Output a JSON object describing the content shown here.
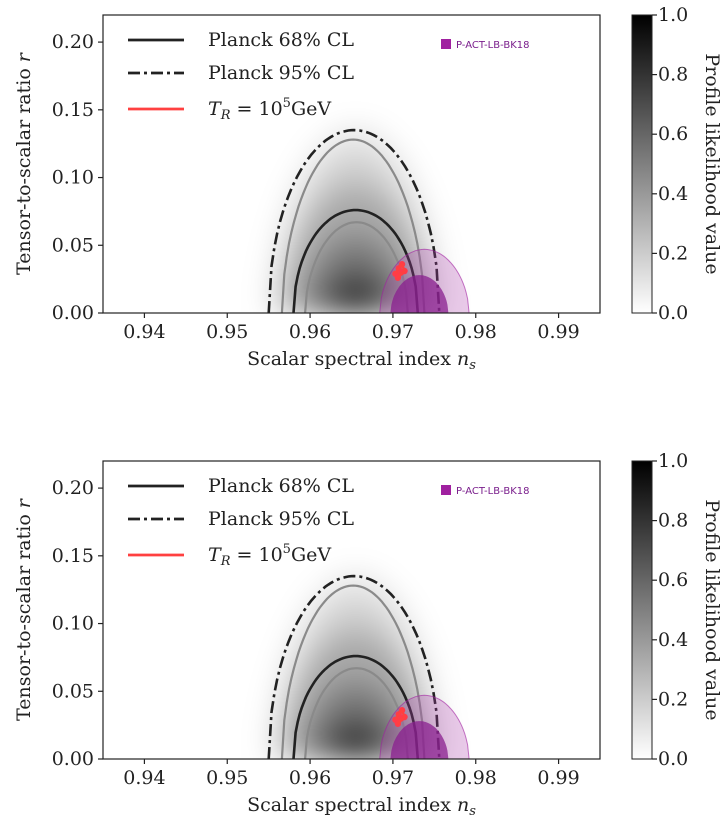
{
  "chart_data": [
    {
      "type": "heatmap",
      "xlabel": "Scalar spectral index n_s",
      "ylabel": "Tensor-to-scalar ratio r",
      "xlim": [
        0.935,
        0.995
      ],
      "ylim": [
        0.0,
        0.22
      ],
      "xticks": [
        "0.94",
        "0.95",
        "0.96",
        "0.97",
        "0.98",
        "0.99"
      ],
      "xtick_values": [
        0.94,
        0.95,
        0.96,
        0.97,
        0.98,
        0.99
      ],
      "yticks": [
        "0.00",
        "0.05",
        "0.10",
        "0.15",
        "0.20"
      ],
      "ytick_values": [
        0.0,
        0.05,
        0.1,
        0.15,
        0.2
      ],
      "colorbar": {
        "label": "Profile likelihood value",
        "ticks": [
          "0.0",
          "0.2",
          "0.4",
          "0.6",
          "0.8",
          "1.0"
        ],
        "tick_values": [
          0.0,
          0.2,
          0.4,
          0.6,
          0.8,
          1.0
        ],
        "range": [
          0.0,
          1.0
        ],
        "colormap": "greys"
      },
      "legend": {
        "placement": "top-left",
        "entries": [
          {
            "label": "Planck 68% CL",
            "style": "solid",
            "color": "#222222"
          },
          {
            "label": "Planck 95% CL",
            "style": "dashdot",
            "color": "#222222"
          },
          {
            "label": "T_R = 10^5 GeV",
            "style": "solid",
            "color": "#ff4040"
          }
        ],
        "extra": {
          "label": "P-ACT-LB-BK18",
          "color": "#a020a0"
        }
      },
      "likelihood_peak": {
        "ns": 0.9655,
        "r": 0.002
      },
      "planck_68": {
        "ns_center": 0.9655,
        "ns_halfwidth": 0.0075,
        "r_max": 0.076
      },
      "planck_95": {
        "ns_center": 0.9653,
        "ns_halfwidth": 0.0103,
        "r_max": 0.135
      },
      "pact_region": {
        "ns_center": 0.9738,
        "ns_halfwidth": 0.0054,
        "r_max": 0.047
      },
      "pact_inner": {
        "ns_center": 0.9732,
        "ns_halfwidth": 0.0035,
        "r_max": 0.028
      },
      "tr_points": [
        {
          "ns": 0.9703,
          "r": 0.029
        },
        {
          "ns": 0.9707,
          "r": 0.033
        },
        {
          "ns": 0.9711,
          "r": 0.036
        },
        {
          "ns": 0.9714,
          "r": 0.031
        },
        {
          "ns": 0.9706,
          "r": 0.026
        },
        {
          "ns": 0.971,
          "r": 0.03
        }
      ]
    },
    {
      "type": "heatmap",
      "xlabel": "Scalar spectral index n_s",
      "ylabel": "Tensor-to-scalar ratio r",
      "xlim": [
        0.935,
        0.995
      ],
      "ylim": [
        0.0,
        0.22
      ],
      "xticks": [
        "0.94",
        "0.95",
        "0.96",
        "0.97",
        "0.98",
        "0.99"
      ],
      "xtick_values": [
        0.94,
        0.95,
        0.96,
        0.97,
        0.98,
        0.99
      ],
      "yticks": [
        "0.00",
        "0.05",
        "0.10",
        "0.15",
        "0.20"
      ],
      "ytick_values": [
        0.0,
        0.05,
        0.1,
        0.15,
        0.2
      ],
      "colorbar": {
        "label": "Profile likelihood value",
        "ticks": [
          "0.0",
          "0.2",
          "0.4",
          "0.6",
          "0.8",
          "1.0"
        ],
        "tick_values": [
          0.0,
          0.2,
          0.4,
          0.6,
          0.8,
          1.0
        ],
        "range": [
          0.0,
          1.0
        ],
        "colormap": "greys"
      },
      "legend": {
        "placement": "top-left",
        "entries": [
          {
            "label": "Planck 68% CL",
            "style": "solid",
            "color": "#222222"
          },
          {
            "label": "Planck 95% CL",
            "style": "dashdot",
            "color": "#222222"
          },
          {
            "label": "T_R = 10^5 GeV",
            "style": "solid",
            "color": "#ff4040"
          }
        ],
        "extra": {
          "label": "P-ACT-LB-BK18",
          "color": "#a020a0"
        }
      },
      "likelihood_peak": {
        "ns": 0.9655,
        "r": 0.002
      },
      "planck_68": {
        "ns_center": 0.9655,
        "ns_halfwidth": 0.0075,
        "r_max": 0.076
      },
      "planck_95": {
        "ns_center": 0.9653,
        "ns_halfwidth": 0.0103,
        "r_max": 0.135
      },
      "pact_region": {
        "ns_center": 0.9738,
        "ns_halfwidth": 0.0054,
        "r_max": 0.047
      },
      "pact_inner": {
        "ns_center": 0.9732,
        "ns_halfwidth": 0.0035,
        "r_max": 0.028
      },
      "tr_points": [
        {
          "ns": 0.9703,
          "r": 0.029
        },
        {
          "ns": 0.9707,
          "r": 0.033
        },
        {
          "ns": 0.9711,
          "r": 0.036
        },
        {
          "ns": 0.9714,
          "r": 0.031
        },
        {
          "ns": 0.9706,
          "r": 0.026
        },
        {
          "ns": 0.971,
          "r": 0.03
        }
      ]
    }
  ]
}
